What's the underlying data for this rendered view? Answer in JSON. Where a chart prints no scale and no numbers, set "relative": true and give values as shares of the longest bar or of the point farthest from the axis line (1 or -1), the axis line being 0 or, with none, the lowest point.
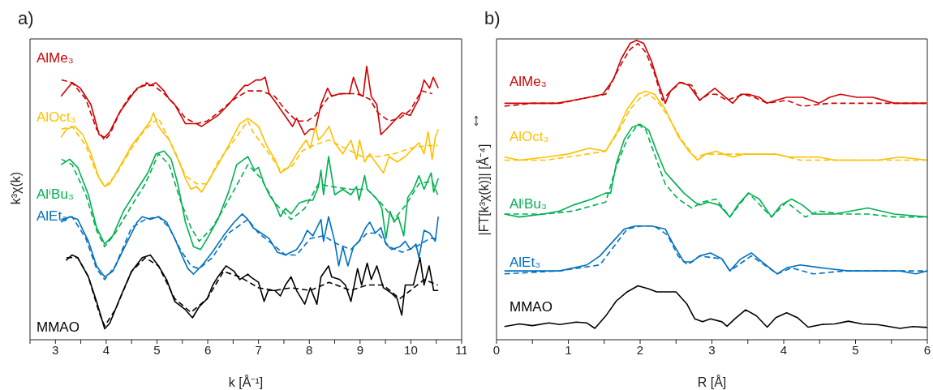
{
  "chart_data": [
    {
      "type": "line",
      "title": "a)",
      "xlabel": "k [Å⁻¹]",
      "ylabel": "k³χ(k)",
      "relative": true,
      "tick_labels": "x",
      "marker": "none",
      "xlim": [
        2.5,
        11
      ],
      "xticks": [
        {
          "value": 2.5,
          "label": null
        },
        3,
        {
          "value": 3.5,
          "label": null
        },
        4,
        {
          "value": 4.5,
          "label": null
        },
        5,
        {
          "value": 5.5,
          "label": null
        },
        6,
        {
          "value": 6.5,
          "label": null
        },
        7,
        {
          "value": 7.5,
          "label": null
        },
        8,
        {
          "value": 8.5,
          "label": null
        },
        9,
        {
          "value": 9.5,
          "label": null
        },
        10,
        {
          "value": 10.5,
          "label": null
        },
        11
      ],
      "series": [
        {
          "name": "AlMe₃",
          "color": "#d00000",
          "line_style": "solid",
          "x": [
            3.11,
            3.33,
            3.49,
            3.7,
            3.86,
            3.97,
            4.07,
            4.26,
            4.45,
            4.61,
            4.77,
            4.79,
            4.87,
            4.98,
            5.14,
            5.24,
            5.35,
            5.56,
            5.78,
            5.88,
            6.04,
            6.2,
            6.41,
            6.63,
            6.73,
            6.79,
            6.95,
            7.05,
            7.13,
            7.21,
            7.37,
            7.48,
            7.67,
            7.75,
            7.91,
            8.02,
            8.12,
            8.23,
            8.36,
            8.44,
            8.6,
            8.79,
            8.87,
            8.98,
            9.06,
            9.13,
            9.22,
            9.33,
            9.41,
            9.52,
            9.67,
            9.83,
            9.99,
            10.07,
            10.16,
            10.26,
            10.37,
            10.44,
            10.54
          ],
          "values": [
            0.89,
            0.94,
            0.92,
            0.86,
            0.75,
            0.74,
            0.76,
            0.83,
            0.88,
            0.92,
            0.93,
            0.94,
            0.93,
            0.94,
            0.91,
            0.88,
            0.86,
            0.79,
            0.79,
            0.78,
            0.8,
            0.82,
            0.86,
            0.91,
            0.93,
            0.93,
            0.95,
            0.95,
            0.96,
            0.9,
            0.86,
            0.83,
            0.78,
            0.81,
            0.75,
            0.77,
            0.77,
            0.86,
            0.92,
            0.89,
            0.9,
            0.9,
            0.96,
            0.9,
            0.89,
            1.0,
            0.89,
            0.86,
            0.75,
            0.77,
            0.8,
            0.83,
            0.82,
            0.85,
            0.88,
            0.95,
            0.92,
            0.96,
            0.92
          ]
        },
        {
          "color": "#d00000",
          "line_style": "dashed",
          "x": [
            3.12,
            3.33,
            3.6,
            3.81,
            3.97,
            4.07,
            4.29,
            4.5,
            4.71,
            4.93,
            5.14,
            5.35,
            5.56,
            5.78,
            5.99,
            6.2,
            6.52,
            6.79,
            7.05,
            7.32,
            7.53,
            7.75,
            7.96,
            8.12,
            8.39,
            8.66,
            8.93,
            9.19,
            9.35,
            9.57,
            9.78,
            9.99,
            10.21,
            10.42
          ],
          "values": [
            0.95,
            0.94,
            0.88,
            0.77,
            0.73,
            0.75,
            0.84,
            0.9,
            0.93,
            0.93,
            0.9,
            0.86,
            0.81,
            0.79,
            0.8,
            0.83,
            0.88,
            0.91,
            0.91,
            0.89,
            0.84,
            0.8,
            0.8,
            0.82,
            0.89,
            0.9,
            0.9,
            0.88,
            0.83,
            0.8,
            0.81,
            0.84,
            0.91,
            0.9
          ]
        },
        {
          "name": "AlOct₃",
          "color": "#ffc000",
          "line_style": "solid",
          "x": [
            3.11,
            3.22,
            3.38,
            3.54,
            3.7,
            3.86,
            3.97,
            4.07,
            4.29,
            4.5,
            4.71,
            4.87,
            4.93,
            5.03,
            5.24,
            5.46,
            5.56,
            5.67,
            5.78,
            5.88,
            6.04,
            6.2,
            6.41,
            6.63,
            6.79,
            7.0,
            7.16,
            7.32,
            7.43,
            7.59,
            7.75,
            7.86,
            7.94,
            8.02,
            8.12,
            8.18,
            8.28,
            8.39,
            8.5,
            8.66,
            8.82,
            8.93,
            8.99,
            9.09,
            9.19,
            9.3,
            9.46,
            9.57,
            9.73,
            9.89,
            10.05,
            10.16,
            10.26,
            10.34,
            10.42,
            10.48,
            10.54
          ],
          "values": [
            0.74,
            0.77,
            0.78,
            0.75,
            0.68,
            0.59,
            0.56,
            0.57,
            0.64,
            0.71,
            0.76,
            0.8,
            0.83,
            0.78,
            0.73,
            0.64,
            0.59,
            0.55,
            0.56,
            0.54,
            0.59,
            0.64,
            0.71,
            0.79,
            0.81,
            0.78,
            0.71,
            0.66,
            0.61,
            0.63,
            0.68,
            0.71,
            0.73,
            0.7,
            0.78,
            0.73,
            0.75,
            0.78,
            0.72,
            0.68,
            0.73,
            0.66,
            0.73,
            0.65,
            0.68,
            0.65,
            0.61,
            0.67,
            0.65,
            0.67,
            0.7,
            0.72,
            0.68,
            0.76,
            0.66,
            0.74,
            0.77
          ]
        },
        {
          "color": "#ffc000",
          "line_style": "dashed",
          "x": [
            3.12,
            3.33,
            3.6,
            3.81,
            3.97,
            4.18,
            4.5,
            4.77,
            5.03,
            5.35,
            5.56,
            5.78,
            5.99,
            6.2,
            6.52,
            6.79,
            6.89,
            7.21,
            7.43,
            7.64,
            7.86,
            8.07,
            8.39,
            8.71,
            9.03,
            9.35,
            9.67,
            9.99,
            10.32,
            10.53
          ],
          "values": [
            0.77,
            0.78,
            0.71,
            0.61,
            0.56,
            0.6,
            0.7,
            0.77,
            0.81,
            0.69,
            0.6,
            0.57,
            0.57,
            0.65,
            0.73,
            0.8,
            0.76,
            0.68,
            0.62,
            0.63,
            0.69,
            0.71,
            0.73,
            0.7,
            0.67,
            0.67,
            0.68,
            0.7,
            0.71,
            0.71
          ]
        },
        {
          "name": "AlⁱBu₃",
          "color": "#00b050",
          "line_style": "solid",
          "x": [
            3.11,
            3.28,
            3.44,
            3.65,
            3.81,
            3.97,
            4.13,
            4.34,
            4.61,
            4.82,
            4.98,
            5.14,
            5.28,
            5.41,
            5.56,
            5.72,
            5.86,
            5.99,
            6.2,
            6.41,
            6.57,
            6.79,
            6.92,
            7.0,
            7.11,
            7.21,
            7.32,
            7.43,
            7.53,
            7.64,
            7.8,
            7.96,
            8.07,
            8.18,
            8.23,
            8.28,
            8.38,
            8.5,
            8.66,
            8.82,
            8.93,
            8.98,
            9.09,
            9.14,
            9.25,
            9.35,
            9.43,
            9.51,
            9.59,
            9.67,
            9.75,
            9.86,
            9.94,
            10.05,
            10.16,
            10.26,
            10.4,
            10.45,
            10.54
          ],
          "values": [
            0.64,
            0.66,
            0.63,
            0.53,
            0.41,
            0.35,
            0.38,
            0.47,
            0.55,
            0.61,
            0.68,
            0.69,
            0.66,
            0.57,
            0.43,
            0.34,
            0.33,
            0.37,
            0.44,
            0.54,
            0.64,
            0.67,
            0.62,
            0.63,
            0.57,
            0.53,
            0.5,
            0.45,
            0.48,
            0.46,
            0.5,
            0.51,
            0.51,
            0.56,
            0.62,
            0.53,
            0.67,
            0.53,
            0.55,
            0.53,
            0.56,
            0.51,
            0.6,
            0.55,
            0.53,
            0.51,
            0.48,
            0.37,
            0.47,
            0.43,
            0.45,
            0.38,
            0.52,
            0.55,
            0.6,
            0.55,
            0.61,
            0.54,
            0.59
          ]
        },
        {
          "color": "#00b050",
          "line_style": "dashed",
          "x": [
            3.12,
            3.33,
            3.6,
            3.81,
            3.97,
            4.18,
            4.5,
            4.77,
            5.03,
            5.24,
            5.46,
            5.67,
            5.83,
            6.09,
            6.41,
            6.79,
            7.05,
            7.32,
            7.64,
            7.91,
            8.18,
            8.44,
            8.82,
            9.14,
            9.41,
            9.67,
            9.89,
            10.16,
            10.42,
            10.53
          ],
          "values": [
            0.66,
            0.64,
            0.53,
            0.4,
            0.34,
            0.39,
            0.49,
            0.57,
            0.68,
            0.64,
            0.51,
            0.41,
            0.36,
            0.41,
            0.51,
            0.64,
            0.59,
            0.5,
            0.44,
            0.48,
            0.57,
            0.56,
            0.55,
            0.55,
            0.5,
            0.44,
            0.49,
            0.57,
            0.58,
            0.53
          ]
        },
        {
          "name": "AlEt₃",
          "color": "#0070c0",
          "line_style": "solid",
          "x": [
            3.11,
            3.28,
            3.44,
            3.65,
            3.81,
            3.97,
            4.13,
            4.34,
            4.61,
            4.71,
            4.87,
            5.03,
            5.19,
            5.35,
            5.51,
            5.61,
            5.72,
            5.88,
            6.09,
            6.31,
            6.52,
            6.68,
            6.79,
            6.89,
            7.05,
            7.21,
            7.37,
            7.53,
            7.75,
            7.86,
            7.96,
            8.07,
            8.23,
            8.28,
            8.38,
            8.5,
            8.58,
            8.66,
            8.76,
            8.87,
            8.98,
            9.11,
            9.19,
            9.3,
            9.41,
            9.51,
            9.62,
            9.78,
            9.89,
            9.99,
            10.1,
            10.16,
            10.26,
            10.37,
            10.48,
            10.54
          ],
          "values": [
            0.43,
            0.45,
            0.44,
            0.36,
            0.27,
            0.23,
            0.25,
            0.33,
            0.43,
            0.45,
            0.44,
            0.45,
            0.43,
            0.37,
            0.3,
            0.26,
            0.24,
            0.27,
            0.32,
            0.38,
            0.43,
            0.46,
            0.44,
            0.41,
            0.39,
            0.37,
            0.32,
            0.31,
            0.33,
            0.36,
            0.4,
            0.38,
            0.44,
            0.36,
            0.45,
            0.36,
            0.27,
            0.34,
            0.27,
            0.34,
            0.36,
            0.41,
            0.43,
            0.39,
            0.41,
            0.35,
            0.33,
            0.34,
            0.36,
            0.33,
            0.35,
            0.3,
            0.4,
            0.39,
            0.36,
            0.45
          ]
        },
        {
          "color": "#0070c0",
          "line_style": "dashed",
          "x": [
            3.12,
            3.33,
            3.6,
            3.81,
            3.97,
            4.18,
            4.5,
            4.77,
            5.03,
            5.24,
            5.46,
            5.67,
            5.83,
            6.09,
            6.41,
            6.79,
            7.0,
            7.27,
            7.53,
            7.75,
            8.02,
            8.28,
            8.55,
            8.82,
            9.14,
            9.35,
            9.57,
            9.83,
            10.1,
            10.37,
            10.53
          ],
          "values": [
            0.44,
            0.45,
            0.37,
            0.26,
            0.22,
            0.27,
            0.41,
            0.44,
            0.45,
            0.41,
            0.33,
            0.27,
            0.26,
            0.3,
            0.39,
            0.44,
            0.39,
            0.35,
            0.31,
            0.31,
            0.37,
            0.38,
            0.35,
            0.33,
            0.39,
            0.39,
            0.34,
            0.32,
            0.34,
            0.37,
            0.37
          ]
        },
        {
          "name": "MMAO",
          "color": "#000000",
          "line_style": "solid",
          "x": [
            3.21,
            3.33,
            3.44,
            3.65,
            3.81,
            3.97,
            4.07,
            4.29,
            4.5,
            4.71,
            4.87,
            5.03,
            5.19,
            5.35,
            5.56,
            5.7,
            5.83,
            5.99,
            6.1,
            6.2,
            6.36,
            6.52,
            6.63,
            6.79,
            6.84,
            7.0,
            7.11,
            7.19,
            7.32,
            7.43,
            7.53,
            7.64,
            7.75,
            7.91,
            8.02,
            8.15,
            8.23,
            8.38,
            8.44,
            8.6,
            8.71,
            8.82,
            8.95,
            9.03,
            9.14,
            9.22,
            9.33,
            9.46,
            9.62,
            9.73,
            9.82,
            9.89,
            10.05,
            10.18,
            10.26,
            10.36,
            10.45,
            10.54
          ],
          "values": [
            0.29,
            0.31,
            0.3,
            0.23,
            0.14,
            0.04,
            0.06,
            0.16,
            0.25,
            0.3,
            0.31,
            0.27,
            0.22,
            0.14,
            0.11,
            0.08,
            0.12,
            0.15,
            0.2,
            0.23,
            0.27,
            0.25,
            0.22,
            0.24,
            0.23,
            0.21,
            0.14,
            0.18,
            0.18,
            0.16,
            0.2,
            0.23,
            0.18,
            0.13,
            0.19,
            0.13,
            0.23,
            0.27,
            0.23,
            0.22,
            0.2,
            0.14,
            0.26,
            0.2,
            0.28,
            0.22,
            0.27,
            0.19,
            0.17,
            0.15,
            0.09,
            0.2,
            0.2,
            0.3,
            0.2,
            0.27,
            0.18,
            0.18
          ]
        },
        {
          "color": "#000000",
          "line_style": "dashed",
          "x": [
            3.22,
            3.44,
            3.65,
            3.86,
            3.97,
            4.18,
            4.5,
            4.77,
            5.03,
            5.35,
            5.67,
            5.99,
            6.31,
            6.63,
            7.0,
            7.32,
            7.64,
            8.02,
            8.39,
            8.82,
            9.14,
            9.46,
            9.78,
            9.99,
            10.26,
            10.53
          ],
          "values": [
            0.3,
            0.3,
            0.23,
            0.1,
            0.05,
            0.11,
            0.25,
            0.3,
            0.27,
            0.15,
            0.1,
            0.15,
            0.25,
            0.23,
            0.19,
            0.18,
            0.19,
            0.18,
            0.21,
            0.18,
            0.2,
            0.2,
            0.15,
            0.18,
            0.22,
            0.2
          ]
        }
      ]
    },
    {
      "type": "line",
      "title": "b)",
      "xlabel": "R [Å]",
      "ylabel": "|FT[k³χ(k)]| [Å⁻⁴]",
      "relative": true,
      "tick_labels": "x",
      "marker": "none",
      "xlim": [
        0,
        6
      ],
      "xticks": [
        0,
        {
          "value": 0.5,
          "label": null
        },
        1,
        {
          "value": 1.5,
          "label": null
        },
        2,
        {
          "value": 2.5,
          "label": null
        },
        3,
        {
          "value": 3.5,
          "label": null
        },
        4,
        {
          "value": 4.5,
          "label": null
        },
        5,
        {
          "value": 5.5,
          "label": null
        },
        6
      ],
      "series": [
        {
          "name": "AlMe₃",
          "color": "#d00000",
          "line_style": "solid",
          "x": [
            0.11,
            0.32,
            0.5,
            0.84,
            1.07,
            1.29,
            1.48,
            1.63,
            1.74,
            1.86,
            1.95,
            2.05,
            2.16,
            2.25,
            2.35,
            2.42,
            2.55,
            2.68,
            2.83,
            2.93,
            3.04,
            3.14,
            3.29,
            3.4,
            3.51,
            3.66,
            3.77,
            3.89,
            4.04,
            4.26,
            4.49,
            4.64,
            4.79,
            5.02,
            5.24,
            5.54,
            5.77,
            5.99
          ],
          "values": [
            0.79,
            0.79,
            0.79,
            0.79,
            0.8,
            0.81,
            0.82,
            0.87,
            0.94,
            0.99,
            1.0,
            0.99,
            0.93,
            0.86,
            0.79,
            0.83,
            0.86,
            0.85,
            0.8,
            0.82,
            0.84,
            0.82,
            0.79,
            0.82,
            0.82,
            0.81,
            0.79,
            0.8,
            0.81,
            0.81,
            0.79,
            0.81,
            0.82,
            0.81,
            0.81,
            0.79,
            0.79,
            0.79
          ]
        },
        {
          "color": "#d00000",
          "line_style": "dashed",
          "x": [
            0.11,
            0.5,
            0.88,
            1.29,
            1.52,
            1.71,
            1.86,
            1.97,
            2.08,
            2.2,
            2.31,
            2.42,
            2.57,
            2.72,
            2.83,
            2.95,
            3.06,
            3.21,
            3.32,
            3.44,
            3.59,
            3.77,
            4.04,
            4.26,
            4.64,
            5.02,
            5.54,
            6.0
          ],
          "values": [
            0.78,
            0.79,
            0.79,
            0.81,
            0.82,
            0.91,
            0.97,
            0.99,
            0.96,
            0.89,
            0.8,
            0.83,
            0.86,
            0.85,
            0.8,
            0.82,
            0.82,
            0.8,
            0.81,
            0.82,
            0.81,
            0.79,
            0.8,
            0.78,
            0.79,
            0.79,
            0.79,
            0.79
          ]
        },
        {
          "name": "AlOct₃",
          "color": "#ffc000",
          "line_style": "solid",
          "x": [
            0.11,
            0.32,
            0.69,
            0.99,
            1.29,
            1.52,
            1.67,
            1.82,
            1.97,
            2.08,
            2.2,
            2.35,
            2.53,
            2.68,
            2.8,
            2.91,
            3.06,
            3.17,
            3.29,
            3.44,
            3.66,
            3.89,
            4.08,
            4.26,
            4.49,
            4.71,
            5.02,
            5.32,
            5.62,
            6.0
          ],
          "values": [
            0.61,
            0.6,
            0.61,
            0.62,
            0.64,
            0.63,
            0.69,
            0.77,
            0.82,
            0.83,
            0.82,
            0.77,
            0.68,
            0.63,
            0.6,
            0.62,
            0.63,
            0.62,
            0.61,
            0.62,
            0.62,
            0.62,
            0.61,
            0.61,
            0.61,
            0.6,
            0.6,
            0.6,
            0.61,
            0.6
          ]
        },
        {
          "color": "#ffc000",
          "line_style": "dashed",
          "x": [
            0.11,
            0.69,
            1.26,
            1.52,
            1.71,
            1.86,
            2.01,
            2.12,
            2.23,
            2.38,
            2.57,
            2.76,
            2.91,
            3.14,
            3.44,
            3.89,
            4.23,
            4.71,
            5.32,
            6.0
          ],
          "values": [
            0.6,
            0.6,
            0.62,
            0.63,
            0.7,
            0.77,
            0.81,
            0.82,
            0.8,
            0.75,
            0.67,
            0.61,
            0.62,
            0.62,
            0.62,
            0.62,
            0.6,
            0.6,
            0.6,
            0.6
          ]
        },
        {
          "name": "AlⁱBu₃",
          "color": "#00b050",
          "line_style": "solid",
          "x": [
            0.11,
            0.32,
            0.65,
            0.88,
            1.07,
            1.33,
            1.52,
            1.59,
            1.67,
            1.78,
            1.89,
            2.0,
            2.12,
            2.23,
            2.35,
            2.46,
            2.61,
            2.76,
            2.83,
            2.95,
            3.1,
            3.25,
            3.36,
            3.51,
            3.66,
            3.83,
            3.96,
            4.11,
            4.26,
            4.41,
            4.71,
            5.17,
            5.54,
            6.0
          ],
          "values": [
            0.42,
            0.41,
            0.42,
            0.43,
            0.45,
            0.47,
            0.49,
            0.49,
            0.59,
            0.67,
            0.71,
            0.72,
            0.7,
            0.63,
            0.56,
            0.53,
            0.49,
            0.46,
            0.45,
            0.46,
            0.45,
            0.41,
            0.45,
            0.49,
            0.47,
            0.41,
            0.45,
            0.47,
            0.45,
            0.42,
            0.42,
            0.44,
            0.42,
            0.41
          ]
        },
        {
          "color": "#00b050",
          "line_style": "dashed",
          "x": [
            0.11,
            0.69,
            1.07,
            1.52,
            1.67,
            1.82,
            1.97,
            2.08,
            2.2,
            2.35,
            2.53,
            2.72,
            2.87,
            3.06,
            3.25,
            3.51,
            3.83,
            4.04,
            4.3,
            4.49,
            4.79,
            5.17,
            5.54,
            6.0
          ],
          "values": [
            0.42,
            0.42,
            0.43,
            0.46,
            0.58,
            0.67,
            0.72,
            0.7,
            0.62,
            0.52,
            0.47,
            0.44,
            0.46,
            0.47,
            0.41,
            0.49,
            0.41,
            0.46,
            0.41,
            0.43,
            0.42,
            0.42,
            0.41,
            0.41
          ]
        },
        {
          "name": "AlEt₃",
          "color": "#0070c0",
          "line_style": "solid",
          "x": [
            0.11,
            0.5,
            0.88,
            1.26,
            1.44,
            1.59,
            1.78,
            1.93,
            2.16,
            2.35,
            2.46,
            2.61,
            2.72,
            2.83,
            2.98,
            3.14,
            3.25,
            3.4,
            3.55,
            3.7,
            3.91,
            4.04,
            4.23,
            4.53,
            4.9,
            5.32,
            5.62,
            5.84,
            6.0
          ],
          "values": [
            0.23,
            0.23,
            0.23,
            0.25,
            0.28,
            0.32,
            0.37,
            0.38,
            0.38,
            0.37,
            0.32,
            0.26,
            0.26,
            0.28,
            0.29,
            0.27,
            0.23,
            0.27,
            0.29,
            0.26,
            0.22,
            0.24,
            0.25,
            0.24,
            0.23,
            0.23,
            0.23,
            0.22,
            0.23
          ]
        },
        {
          "color": "#0070c0",
          "line_style": "dashed",
          "x": [
            0.11,
            0.88,
            1.44,
            1.63,
            1.82,
            2.01,
            2.2,
            2.38,
            2.53,
            2.66,
            2.83,
            3.14,
            3.25,
            3.55,
            3.91,
            4.11,
            4.41,
            4.86,
            5.32,
            6.0
          ],
          "values": [
            0.22,
            0.23,
            0.25,
            0.31,
            0.37,
            0.38,
            0.38,
            0.35,
            0.28,
            0.25,
            0.28,
            0.27,
            0.23,
            0.28,
            0.22,
            0.24,
            0.22,
            0.23,
            0.23,
            0.23
          ]
        },
        {
          "name": "MMAO",
          "color": "#000000",
          "line_style": "solid",
          "x": [
            0.11,
            0.32,
            0.5,
            0.73,
            0.88,
            1.11,
            1.26,
            1.37,
            1.52,
            1.67,
            1.82,
            1.97,
            2.12,
            2.23,
            2.38,
            2.5,
            2.65,
            2.76,
            2.87,
            2.98,
            3.14,
            3.21,
            3.32,
            3.47,
            3.62,
            3.77,
            3.89,
            4.04,
            4.19,
            4.34,
            4.53,
            4.71,
            4.9,
            5.09,
            5.32,
            5.62,
            5.8,
            6.0
          ],
          "values": [
            0.044,
            0.053,
            0.047,
            0.056,
            0.051,
            0.059,
            0.056,
            0.038,
            0.079,
            0.13,
            0.16,
            0.18,
            0.17,
            0.16,
            0.16,
            0.16,
            0.12,
            0.07,
            0.06,
            0.07,
            0.06,
            0.045,
            0.07,
            0.1,
            0.08,
            0.042,
            0.074,
            0.09,
            0.074,
            0.042,
            0.051,
            0.053,
            0.062,
            0.053,
            0.05,
            0.038,
            0.044,
            0.041
          ]
        }
      ]
    }
  ]
}
